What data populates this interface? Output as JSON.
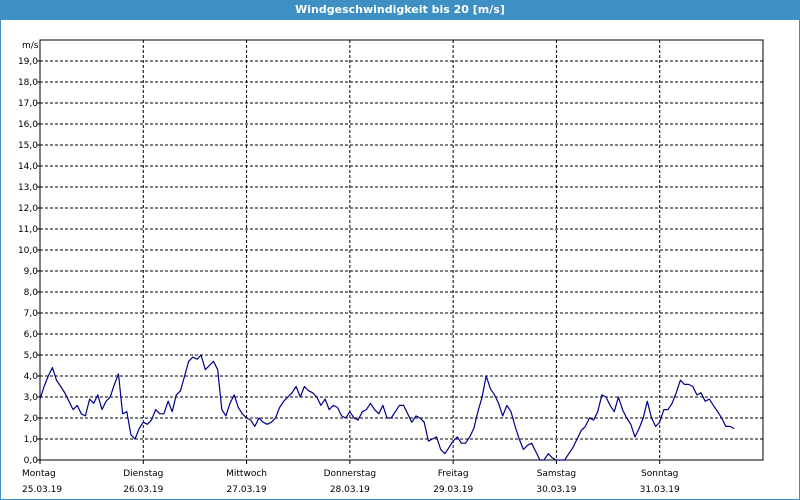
{
  "window": {
    "title": "Windgeschwindigkeit bis 20 [m/s]"
  },
  "colors": {
    "title_bar": "#3d8fc4",
    "line": "#00008b",
    "grid": "#000000"
  },
  "chart_data": {
    "type": "line",
    "title": "Windgeschwindigkeit bis 20 [m/s]",
    "ylabel": "m/s",
    "ylim": [
      0,
      20
    ],
    "y_ticks": [
      "0,0",
      "1,0",
      "2,0",
      "3,0",
      "4,0",
      "5,0",
      "6,0",
      "7,0",
      "8,0",
      "9,0",
      "10,0",
      "11,0",
      "12,0",
      "13,0",
      "14,0",
      "15,0",
      "16,0",
      "17,0",
      "18,0",
      "19,0"
    ],
    "x_ticks": [
      {
        "day": "Montag",
        "date": "25.03.19"
      },
      {
        "day": "Dienstag",
        "date": "26.03.19"
      },
      {
        "day": "Mittwoch",
        "date": "27.03.19"
      },
      {
        "day": "Donnerstag",
        "date": "28.03.19"
      },
      {
        "day": "Freitag",
        "date": "29.03.19"
      },
      {
        "day": "Samstag",
        "date": "30.03.19"
      },
      {
        "day": "Sonntag",
        "date": "31.03.19"
      }
    ],
    "xlim_days": [
      0,
      7.0
    ],
    "grid": true,
    "series": [
      {
        "points": [
          [
            0.0,
            2.9
          ],
          [
            0.04,
            3.5
          ],
          [
            0.08,
            4.0
          ],
          [
            0.12,
            4.4
          ],
          [
            0.16,
            3.8
          ],
          [
            0.2,
            3.5
          ],
          [
            0.24,
            3.2
          ],
          [
            0.28,
            2.8
          ],
          [
            0.32,
            2.4
          ],
          [
            0.36,
            2.6
          ],
          [
            0.4,
            2.2
          ],
          [
            0.44,
            2.1
          ],
          [
            0.48,
            2.9
          ],
          [
            0.52,
            2.7
          ],
          [
            0.56,
            3.1
          ],
          [
            0.6,
            2.4
          ],
          [
            0.64,
            2.8
          ],
          [
            0.68,
            3.0
          ],
          [
            0.72,
            3.6
          ],
          [
            0.76,
            4.1
          ],
          [
            0.8,
            2.2
          ],
          [
            0.84,
            2.3
          ],
          [
            0.88,
            1.2
          ],
          [
            0.92,
            1.0
          ],
          [
            0.96,
            1.5
          ],
          [
            1.0,
            1.8
          ],
          [
            1.04,
            1.7
          ],
          [
            1.08,
            1.9
          ],
          [
            1.12,
            2.4
          ],
          [
            1.16,
            2.2
          ],
          [
            1.2,
            2.2
          ],
          [
            1.24,
            2.8
          ],
          [
            1.28,
            2.3
          ],
          [
            1.32,
            3.1
          ],
          [
            1.36,
            3.3
          ],
          [
            1.4,
            4.0
          ],
          [
            1.44,
            4.7
          ],
          [
            1.48,
            4.9
          ],
          [
            1.52,
            4.8
          ],
          [
            1.56,
            5.0
          ],
          [
            1.6,
            4.3
          ],
          [
            1.64,
            4.5
          ],
          [
            1.68,
            4.7
          ],
          [
            1.72,
            4.3
          ],
          [
            1.76,
            2.4
          ],
          [
            1.8,
            2.1
          ],
          [
            1.84,
            2.7
          ],
          [
            1.88,
            3.1
          ],
          [
            1.92,
            2.5
          ],
          [
            1.96,
            2.2
          ],
          [
            2.0,
            2.0
          ],
          [
            2.04,
            1.9
          ],
          [
            2.08,
            1.6
          ],
          [
            2.12,
            2.0
          ],
          [
            2.16,
            1.8
          ],
          [
            2.2,
            1.7
          ],
          [
            2.24,
            1.8
          ],
          [
            2.28,
            2.0
          ],
          [
            2.32,
            2.5
          ],
          [
            2.36,
            2.8
          ],
          [
            2.4,
            3.0
          ],
          [
            2.44,
            3.2
          ],
          [
            2.48,
            3.5
          ],
          [
            2.52,
            3.0
          ],
          [
            2.56,
            3.5
          ],
          [
            2.6,
            3.3
          ],
          [
            2.64,
            3.2
          ],
          [
            2.68,
            3.0
          ],
          [
            2.72,
            2.6
          ],
          [
            2.76,
            2.9
          ],
          [
            2.8,
            2.4
          ],
          [
            2.84,
            2.6
          ],
          [
            2.88,
            2.5
          ],
          [
            2.92,
            2.1
          ],
          [
            2.96,
            2.0
          ],
          [
            3.0,
            2.3
          ],
          [
            3.04,
            2.0
          ],
          [
            3.08,
            1.9
          ],
          [
            3.12,
            2.3
          ],
          [
            3.16,
            2.4
          ],
          [
            3.2,
            2.7
          ],
          [
            3.24,
            2.4
          ],
          [
            3.28,
            2.2
          ],
          [
            3.32,
            2.6
          ],
          [
            3.36,
            2.0
          ],
          [
            3.4,
            2.0
          ],
          [
            3.44,
            2.3
          ],
          [
            3.48,
            2.6
          ],
          [
            3.52,
            2.6
          ],
          [
            3.56,
            2.2
          ],
          [
            3.6,
            1.8
          ],
          [
            3.64,
            2.1
          ],
          [
            3.68,
            2.0
          ],
          [
            3.72,
            1.8
          ],
          [
            3.76,
            0.9
          ],
          [
            3.8,
            1.0
          ],
          [
            3.84,
            1.1
          ],
          [
            3.88,
            0.5
          ],
          [
            3.92,
            0.3
          ],
          [
            3.96,
            0.6
          ],
          [
            4.0,
            0.9
          ],
          [
            4.04,
            1.1
          ],
          [
            4.08,
            0.8
          ],
          [
            4.12,
            0.8
          ],
          [
            4.16,
            1.1
          ],
          [
            4.2,
            1.5
          ],
          [
            4.24,
            2.3
          ],
          [
            4.28,
            3.0
          ],
          [
            4.32,
            4.0
          ],
          [
            4.36,
            3.4
          ],
          [
            4.4,
            3.1
          ],
          [
            4.44,
            2.7
          ],
          [
            4.48,
            2.1
          ],
          [
            4.52,
            2.6
          ],
          [
            4.56,
            2.3
          ],
          [
            4.6,
            1.6
          ],
          [
            4.64,
            1.0
          ],
          [
            4.68,
            0.5
          ],
          [
            4.72,
            0.7
          ],
          [
            4.76,
            0.8
          ],
          [
            4.8,
            0.4
          ],
          [
            4.84,
            0.0
          ],
          [
            4.88,
            0.0
          ],
          [
            4.92,
            0.3
          ],
          [
            4.96,
            0.1
          ],
          [
            5.0,
            0.0
          ],
          [
            5.04,
            0.0
          ],
          [
            5.08,
            0.0
          ],
          [
            5.12,
            0.3
          ],
          [
            5.16,
            0.6
          ],
          [
            5.2,
            1.0
          ],
          [
            5.24,
            1.4
          ],
          [
            5.28,
            1.6
          ],
          [
            5.32,
            2.0
          ],
          [
            5.36,
            1.9
          ],
          [
            5.4,
            2.3
          ],
          [
            5.44,
            3.1
          ],
          [
            5.48,
            3.0
          ],
          [
            5.52,
            2.6
          ],
          [
            5.56,
            2.3
          ],
          [
            5.6,
            3.0
          ],
          [
            5.64,
            2.4
          ],
          [
            5.68,
            2.0
          ],
          [
            5.72,
            1.7
          ],
          [
            5.76,
            1.1
          ],
          [
            5.8,
            1.5
          ],
          [
            5.84,
            2.0
          ],
          [
            5.88,
            2.8
          ],
          [
            5.92,
            2.0
          ],
          [
            5.96,
            1.6
          ],
          [
            6.0,
            1.8
          ],
          [
            6.04,
            2.4
          ],
          [
            6.08,
            2.4
          ],
          [
            6.12,
            2.7
          ],
          [
            6.16,
            3.2
          ],
          [
            6.2,
            3.8
          ],
          [
            6.24,
            3.6
          ],
          [
            6.28,
            3.6
          ],
          [
            6.32,
            3.5
          ],
          [
            6.36,
            3.1
          ],
          [
            6.4,
            3.2
          ],
          [
            6.44,
            2.8
          ],
          [
            6.48,
            2.9
          ],
          [
            6.52,
            2.6
          ],
          [
            6.56,
            2.3
          ],
          [
            6.6,
            2.0
          ],
          [
            6.64,
            1.6
          ],
          [
            6.68,
            1.6
          ],
          [
            6.72,
            1.5
          ]
        ]
      }
    ]
  }
}
